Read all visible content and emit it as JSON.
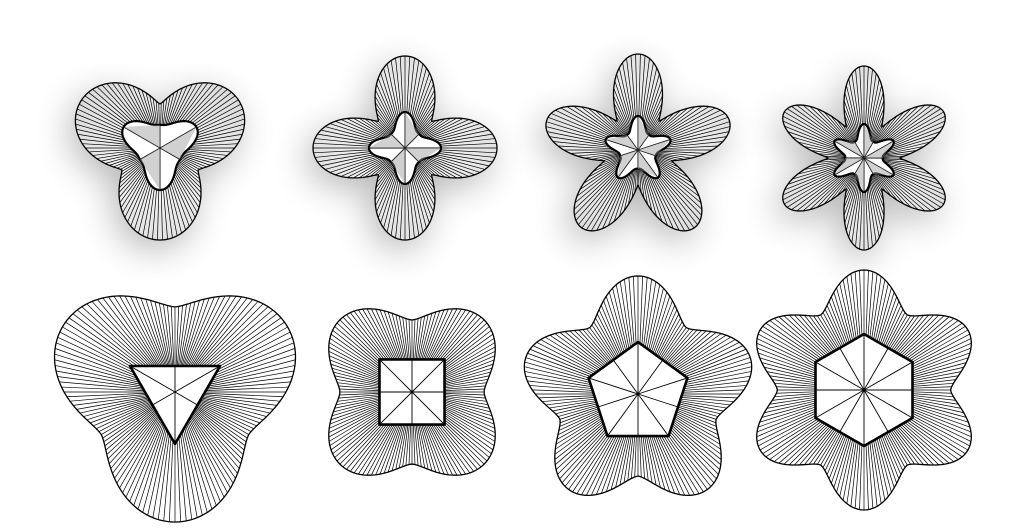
{
  "colors": {
    "background": "#ffffff",
    "stroke": "#000000",
    "fill_3d": "#f3f3f3",
    "fill_flat": "#ffffff",
    "shadow": "#000000"
  },
  "rows": [
    {
      "style": "3d-shaded",
      "shapes": [
        {
          "petals": 3,
          "inner_polygon": "triangle",
          "inner_style": "star"
        },
        {
          "petals": 4,
          "inner_polygon": "square",
          "inner_style": "star"
        },
        {
          "petals": 5,
          "inner_polygon": "pentagon",
          "inner_style": "star"
        },
        {
          "petals": 6,
          "inner_polygon": "hexagon",
          "inner_style": "star"
        }
      ]
    },
    {
      "style": "flat",
      "shapes": [
        {
          "petals": 3,
          "inner_polygon": "triangle",
          "inner_style": "polygon"
        },
        {
          "petals": 4,
          "inner_polygon": "square",
          "inner_style": "polygon"
        },
        {
          "petals": 5,
          "inner_polygon": "pentagon",
          "inner_style": "polygon"
        },
        {
          "petals": 6,
          "inner_polygon": "hexagon",
          "inner_style": "polygon"
        }
      ]
    }
  ]
}
